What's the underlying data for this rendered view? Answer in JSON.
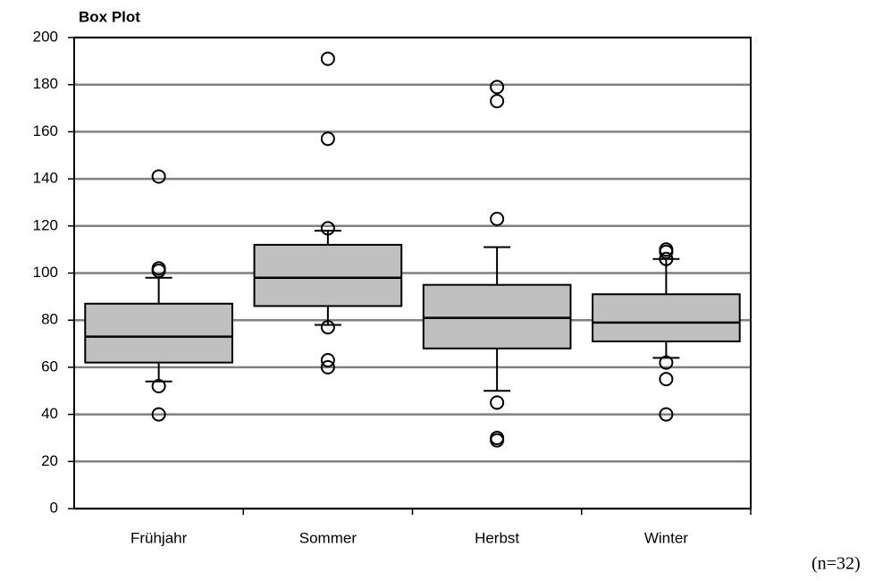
{
  "chart_data": {
    "type": "box",
    "title": "Box Plot",
    "annotation": "(n=32)",
    "categories": [
      "Frühjahr",
      "Sommer",
      "Herbst",
      "Winter"
    ],
    "boxes": [
      {
        "min": 54,
        "q1": 62,
        "median": 73,
        "q3": 87,
        "max": 98,
        "outliers": [
          141,
          102,
          101,
          52,
          40
        ]
      },
      {
        "min": 78,
        "q1": 86,
        "median": 98,
        "q3": 112,
        "max": 118,
        "outliers": [
          191,
          157,
          119,
          77,
          63,
          60
        ]
      },
      {
        "min": 50,
        "q1": 68,
        "median": 81,
        "q3": 95,
        "max": 111,
        "outliers": [
          179,
          173,
          123,
          45,
          30,
          29
        ]
      },
      {
        "min": 64,
        "q1": 71,
        "median": 79,
        "q3": 91,
        "max": 106,
        "outliers": [
          110,
          109,
          106,
          62,
          55,
          40
        ]
      }
    ],
    "color": "#c0c0c0",
    "grid": true,
    "ylim": [
      0,
      200
    ],
    "yticks": [
      0,
      20,
      40,
      60,
      80,
      100,
      120,
      140,
      160,
      180,
      200
    ]
  }
}
